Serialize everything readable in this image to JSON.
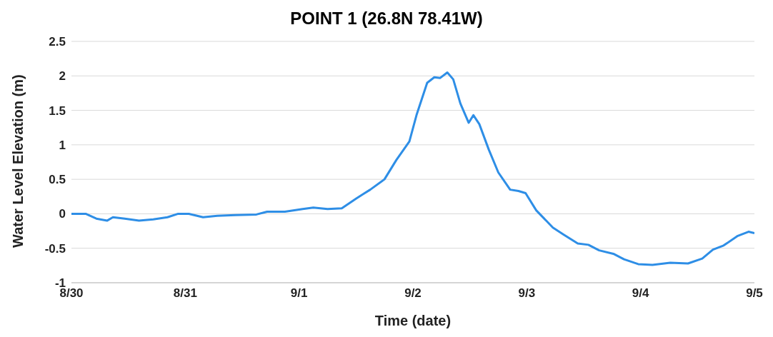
{
  "chart_data": {
    "type": "line",
    "title": "POINT 1 (26.8N 78.41W)",
    "xlabel": "Time (date)",
    "ylabel": "Water Level Elevation (m)",
    "x": [
      "--08-30T00:00",
      "--08-30T03:00",
      "--08-30T05:15",
      "--08-30T07:30",
      "--08-30T08:45",
      "--08-30T11:15",
      "--08-30T14:15",
      "--08-30T17:15",
      "--08-30T20:15",
      "--08-30T22:30",
      "--08-31T00:45",
      "--08-31T03:45",
      "--08-31T06:45",
      "--08-31T10:30",
      "--08-31T15:00",
      "--08-31T17:15",
      "--08-31T21:00",
      "--09-01T00:45",
      "--09-01T03:00",
      "--09-01T06:00",
      "--09-01T09:00",
      "--09-01T12:00",
      "--09-01T15:00",
      "--09-01T18:00",
      "--09-01T20:30",
      "--09-01T23:15",
      "--09-02T00:45",
      "--09-02T03:00",
      "--09-02T04:30",
      "--09-02T05:45",
      "--09-02T07:15",
      "--09-02T08:30",
      "--09-02T10:00",
      "--09-02T11:45",
      "--09-02T12:45",
      "--09-02T14:00",
      "--09-02T16:00",
      "--09-02T18:00",
      "--09-02T20:30",
      "--09-02T22:15",
      "--09-02T23:45",
      "--09-03T02:00",
      "--09-03T05:30",
      "--09-03T07:45",
      "--09-03T10:45",
      "--09-03T13:00",
      "--09-03T15:15",
      "--09-03T18:15",
      "--09-03T20:30",
      "--09-03T23:30",
      "--09-04T02:30",
      "--09-04T06:15",
      "--09-04T10:00",
      "--09-04T13:00",
      "--09-04T15:15",
      "--09-04T17:30",
      "--09-04T20:30",
      "--09-04T22:45",
      "--09-05T00:00"
    ],
    "series": [
      {
        "color": "#2e8ee6",
        "values": [
          0,
          0,
          -0.07,
          -0.1,
          -0.05,
          -0.07,
          -0.1,
          -0.08,
          -0.05,
          0,
          0,
          -0.05,
          -0.03,
          -0.02,
          -0.01,
          0.03,
          0.03,
          0.07,
          0.09,
          0.07,
          0.08,
          0.22,
          0.35,
          0.5,
          0.78,
          1.05,
          1.43,
          1.9,
          1.98,
          1.97,
          2.05,
          1.95,
          1.6,
          1.32,
          1.43,
          1.3,
          0.93,
          0.6,
          0.35,
          0.33,
          0.3,
          0.05,
          -0.2,
          -0.3,
          -0.43,
          -0.45,
          -0.53,
          -0.58,
          -0.66,
          -0.73,
          -0.74,
          -0.71,
          -0.72,
          -0.65,
          -0.52,
          -0.46,
          -0.32,
          -0.26,
          -0.28
        ]
      }
    ],
    "xlim": [
      "--08-30",
      "--09-05"
    ],
    "xticks": [
      {
        "value": "--08-30",
        "label": "8/30"
      },
      {
        "value": "--08-31",
        "label": "8/31"
      },
      {
        "value": "--09-01",
        "label": "9/1"
      },
      {
        "value": "--09-02",
        "label": "9/2"
      },
      {
        "value": "--09-03",
        "label": "9/3"
      },
      {
        "value": "--09-04",
        "label": "9/4"
      },
      {
        "value": "--09-05",
        "label": "9/5"
      }
    ],
    "ylim": [
      -1,
      2.5
    ],
    "yticks": [
      -1,
      -0.5,
      0,
      0.5,
      1,
      1.5,
      2,
      2.5
    ],
    "grid": "y",
    "marker": "none",
    "line_style": "solid",
    "legend": false
  }
}
